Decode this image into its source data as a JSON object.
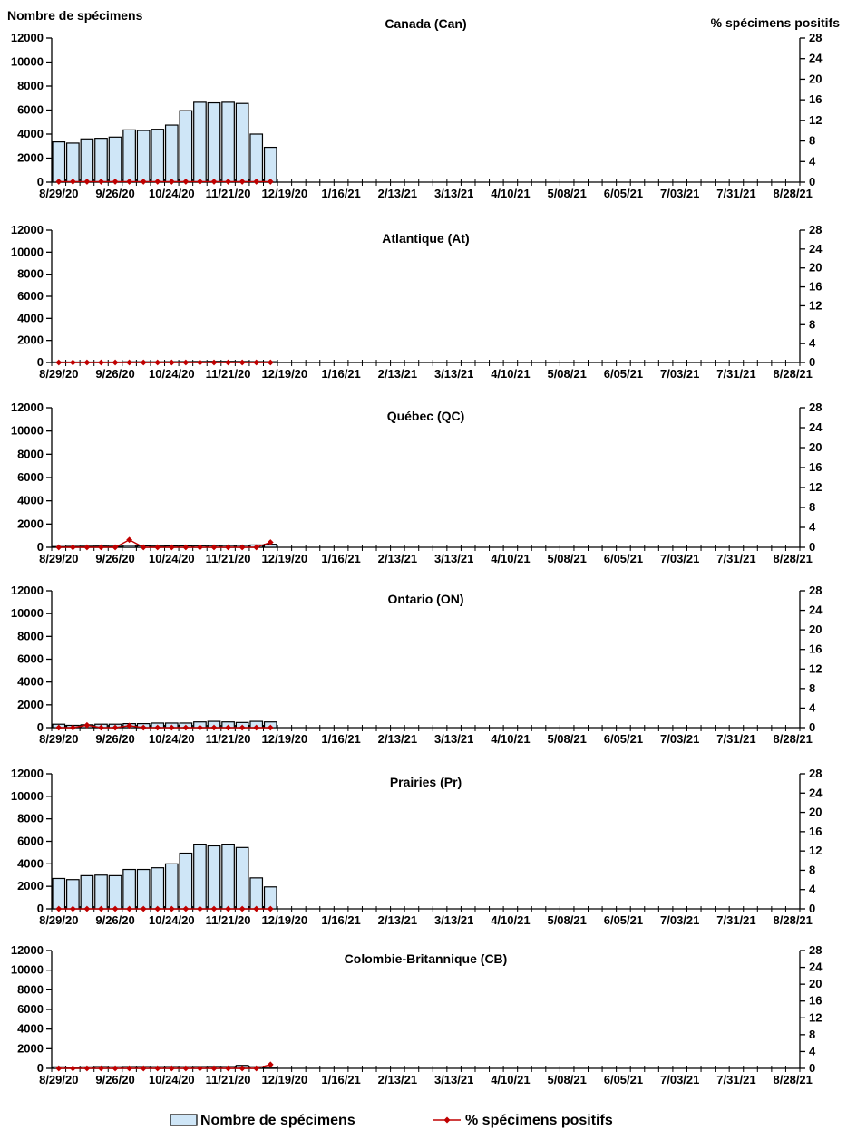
{
  "chart_data": {
    "type": "combo-bar-line",
    "description_note": "Six stacked weekly surveillance panels, bars = specimen counts (left axis), red diamond line = percent positive (right axis)",
    "left_axis": {
      "title": "Nombre de spécimens",
      "min": 0,
      "max": 12000,
      "ticks": [
        0,
        2000,
        4000,
        6000,
        8000,
        10000,
        12000
      ]
    },
    "right_axis": {
      "title": "% spécimens positifs",
      "min": 0,
      "max": 28,
      "ticks": [
        0,
        4,
        8,
        12,
        16,
        20,
        24,
        28
      ]
    },
    "x_tick_labels": [
      "8/29/20",
      "9/26/20",
      "10/24/20",
      "11/21/20",
      "12/19/20",
      "1/16/21",
      "2/13/21",
      "3/13/21",
      "4/10/21",
      "5/08/21",
      "6/05/21",
      "7/03/21",
      "7/31/21",
      "8/28/21"
    ],
    "weeks_total": 53,
    "weeks_with_data": [
      "8/29/20",
      "9/05/20",
      "9/12/20",
      "9/19/20",
      "9/26/20",
      "10/03/20",
      "10/10/20",
      "10/17/20",
      "10/24/20",
      "10/31/20",
      "11/07/20",
      "11/14/20",
      "11/21/20",
      "11/28/20",
      "12/05/20",
      "12/12/20"
    ],
    "legend": [
      "Nombre de spécimens",
      "% spécimens positifs"
    ],
    "colors": {
      "bar_fill": "#CFE6F7",
      "bar_border": "#000000",
      "line": "#C00000",
      "axis": "#000000"
    },
    "panels": [
      {
        "title": "Canada (Can)",
        "specimens": [
          3350,
          3250,
          3600,
          3650,
          3750,
          4350,
          4300,
          4400,
          4750,
          5950,
          6650,
          6600,
          6650,
          6550,
          4000,
          2900
        ],
        "pct_positive": [
          0.1,
          0.1,
          0.1,
          0.1,
          0.1,
          0.1,
          0.1,
          0.1,
          0.1,
          0.1,
          0.1,
          0.1,
          0.1,
          0.1,
          0.1,
          0.1
        ]
      },
      {
        "title": "Atlantique (At)",
        "specimens": [
          30,
          30,
          40,
          40,
          40,
          60,
          60,
          60,
          70,
          80,
          90,
          100,
          100,
          90,
          80,
          70
        ],
        "pct_positive": [
          0,
          0,
          0,
          0,
          0,
          0,
          0,
          0,
          0,
          0,
          0,
          0,
          0,
          0,
          0,
          0
        ]
      },
      {
        "title": "Québec (QC)",
        "specimens": [
          60,
          80,
          90,
          100,
          90,
          160,
          120,
          100,
          110,
          120,
          130,
          140,
          150,
          160,
          200,
          260
        ],
        "pct_positive": [
          0,
          0,
          0,
          0,
          0,
          1.5,
          0,
          0,
          0,
          0,
          0,
          0,
          0,
          0,
          0,
          1.0
        ]
      },
      {
        "title": "Ontario (ON)",
        "specimens": [
          300,
          200,
          250,
          300,
          300,
          350,
          350,
          400,
          400,
          400,
          500,
          550,
          500,
          450,
          550,
          500
        ],
        "pct_positive": [
          0,
          0,
          0.5,
          0,
          0,
          0.4,
          0,
          0,
          0,
          0,
          0,
          0,
          0,
          0,
          0,
          0
        ]
      },
      {
        "title": "Prairies (Pr)",
        "specimens": [
          2700,
          2600,
          2950,
          3000,
          2950,
          3500,
          3500,
          3650,
          4000,
          4950,
          5750,
          5600,
          5750,
          5450,
          2750,
          1950
        ],
        "pct_positive": [
          0,
          0,
          0,
          0,
          0,
          0,
          0,
          0,
          0,
          0,
          0,
          0,
          0,
          0,
          0,
          0
        ]
      },
      {
        "title": "Colombie-Britannique (CB)",
        "specimens": [
          150,
          120,
          150,
          180,
          160,
          180,
          180,
          170,
          180,
          170,
          180,
          190,
          180,
          300,
          160,
          120
        ],
        "pct_positive": [
          0,
          0,
          0,
          0,
          0,
          0,
          0,
          0,
          0,
          0,
          0,
          0,
          0,
          0,
          0,
          0.9
        ]
      }
    ]
  }
}
